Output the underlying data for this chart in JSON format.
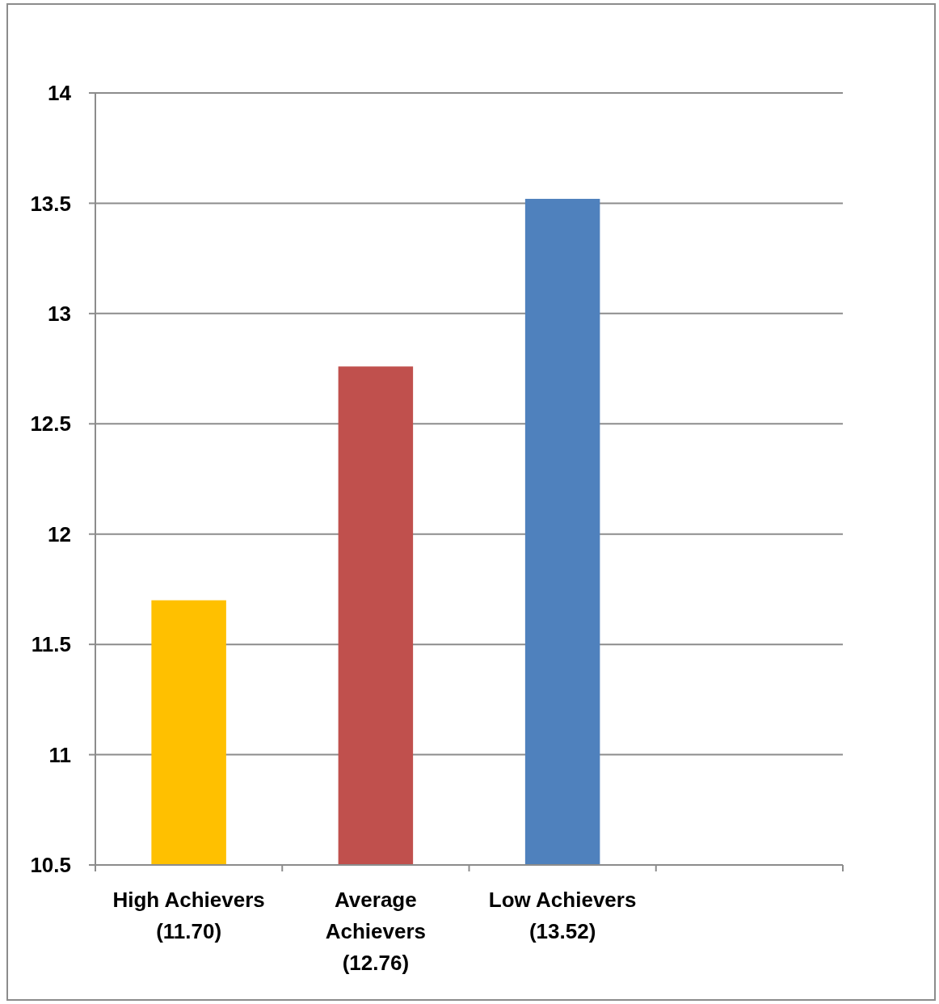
{
  "chart_data": {
    "type": "bar",
    "categories": [
      "High Achievers (11.70)",
      "Average Achievers (12.76)",
      "Low Achievers (13.52)",
      null
    ],
    "values": [
      11.7,
      12.76,
      13.52,
      null
    ],
    "colors": [
      "#ffc000",
      "#c0504d",
      "#4f81bd",
      null
    ],
    "ylim": [
      10.5,
      14
    ],
    "yticks": [
      10.5,
      11,
      11.5,
      12,
      12.5,
      13,
      13.5,
      14
    ],
    "grid": "y"
  }
}
